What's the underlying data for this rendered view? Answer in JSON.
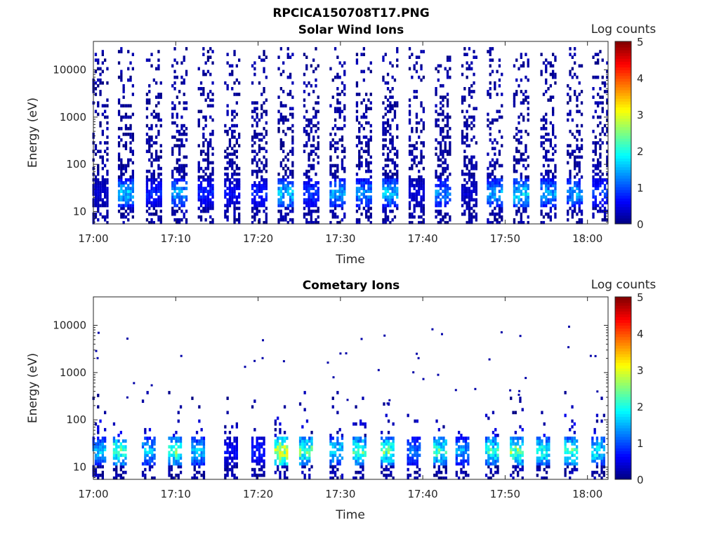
{
  "figure": {
    "file_title": "RPCICA150708T17.PNG"
  },
  "chart_data": [
    {
      "type": "heatmap",
      "title": "Solar Wind Ions",
      "xlabel": "Time",
      "ylabel": "Energy (eV)",
      "x_ticks": [
        "17:00",
        "17:10",
        "17:20",
        "17:30",
        "17:40",
        "17:50",
        "18:00"
      ],
      "x_range_minutes": [
        0,
        62.5
      ],
      "y_scale": "log",
      "y_ticks": [
        "10",
        "100",
        "1000",
        "10000"
      ],
      "y_range": [
        5.5,
        40000
      ],
      "colorbar": {
        "label": "Log counts",
        "range": [
          0,
          5
        ],
        "ticks": [
          "0",
          "1",
          "2",
          "3",
          "4",
          "5"
        ],
        "colormap": "jet"
      },
      "sweep_times_min": [
        0.3,
        3.4,
        6.8,
        9.9,
        13.1,
        16.3,
        19.6,
        22.8,
        25.9,
        29.1,
        32.3,
        35.5,
        38.7,
        41.9,
        45.1,
        48.2,
        51.4,
        54.7,
        57.9,
        61.0
      ],
      "peak_energy_eV": 25,
      "peak_log_counts": [
        0.5,
        2.0,
        1.0,
        1.8,
        1.0,
        0.8,
        1.0,
        2.1,
        1.2,
        1.9,
        1.7,
        2.0,
        0.6,
        1.6,
        0.5,
        1.9,
        2.2,
        1.8,
        1.8,
        1.2
      ],
      "spread_to_max_energy_eV": 30000
    },
    {
      "type": "heatmap",
      "title": "Cometary Ions",
      "xlabel": "Time",
      "ylabel": "Energy (eV)",
      "x_ticks": [
        "17:00",
        "17:10",
        "17:20",
        "17:30",
        "17:40",
        "17:50",
        "18:00"
      ],
      "x_range_minutes": [
        0,
        62.5
      ],
      "y_scale": "log",
      "y_ticks": [
        "10",
        "100",
        "1000",
        "10000"
      ],
      "y_range": [
        5.5,
        40000
      ],
      "colorbar": {
        "label": "Log counts",
        "range": [
          0,
          5
        ],
        "ticks": [
          "0",
          "1",
          "2",
          "3",
          "4",
          "5"
        ],
        "colormap": "jet"
      },
      "sweep_times_min": [
        0.3,
        2.8,
        6.3,
        9.5,
        12.3,
        16.3,
        19.6,
        22.4,
        25.4,
        29.1,
        31.9,
        35.3,
        38.5,
        41.7,
        44.4,
        48.0,
        51.0,
        54.2,
        57.6,
        60.9
      ],
      "peak_energy_eV": 22,
      "peak_log_counts": [
        2.0,
        3.0,
        2.0,
        3.0,
        2.0,
        0.8,
        1.0,
        3.8,
        3.0,
        2.3,
        2.8,
        3.0,
        1.5,
        2.8,
        1.8,
        2.7,
        3.1,
        2.6,
        2.8,
        2.4
      ],
      "spread_to_max_energy_eV": 400
    }
  ]
}
